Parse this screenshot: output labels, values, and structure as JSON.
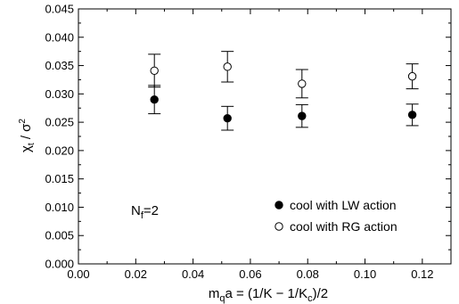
{
  "chart_data": {
    "type": "scatter",
    "xlabel": {
      "pre": "m",
      "pre_sub": "q",
      "mid": "a = (1/K − 1/K",
      "mid_sub": "c",
      "post": ")/2"
    },
    "ylabel": {
      "chi": "χ",
      "chi_sub": "t",
      "rest": " / σ",
      "sup": "2"
    },
    "xlim": [
      0.0,
      0.13
    ],
    "ylim": [
      0.0,
      0.045
    ],
    "x_ticks": [
      0.0,
      0.02,
      0.04,
      0.06,
      0.08,
      0.1,
      0.12
    ],
    "x_tick_labels": [
      "0.00",
      "0.02",
      "0.04",
      "0.06",
      "0.08",
      "0.10",
      "0.12"
    ],
    "y_ticks": [
      0.0,
      0.005,
      0.01,
      0.015,
      0.02,
      0.025,
      0.03,
      0.035,
      0.04,
      0.045
    ],
    "y_tick_labels": [
      "0.000",
      "0.005",
      "0.010",
      "0.015",
      "0.020",
      "0.025",
      "0.030",
      "0.035",
      "0.040",
      "0.045"
    ],
    "annotation": {
      "main": "N",
      "sub": "f",
      "post": "=2"
    },
    "legend_position": "lower-right",
    "grid": false,
    "series": [
      {
        "name": "cool with LW action",
        "marker": "filled-circle",
        "x": [
          0.0265,
          0.052,
          0.078,
          0.1165
        ],
        "y": [
          0.029,
          0.0257,
          0.0261,
          0.0263
        ],
        "err": [
          0.0025,
          0.0021,
          0.002,
          0.0019
        ]
      },
      {
        "name": "cool with RG action",
        "marker": "open-circle",
        "x": [
          0.0265,
          0.052,
          0.078,
          0.1165
        ],
        "y": [
          0.0341,
          0.0348,
          0.0318,
          0.0331
        ],
        "err": [
          0.0029,
          0.0027,
          0.0025,
          0.0022
        ]
      }
    ]
  }
}
